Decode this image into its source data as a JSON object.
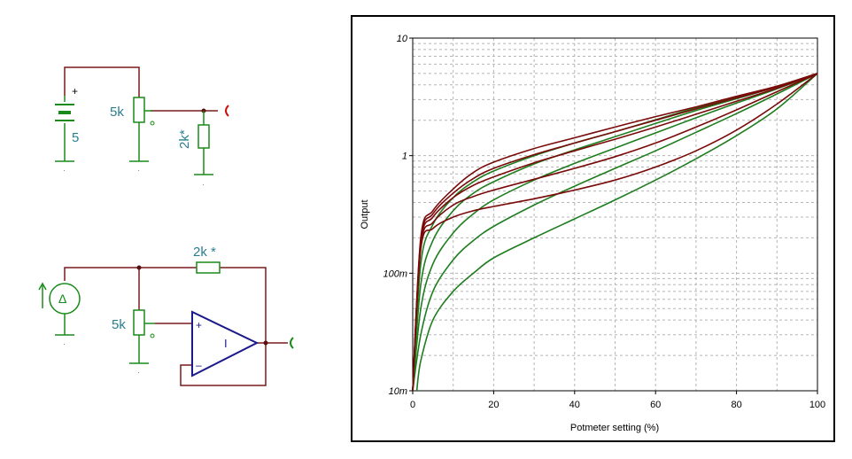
{
  "schematic": {
    "top": {
      "battery_plus": "+",
      "battery_value": "5",
      "pot_label": "5k",
      "resistor_label": "2k*"
    },
    "bottom": {
      "resistor_label": "2k *",
      "pot_label": "5k",
      "opamp_plus": "+",
      "opamp_minus": "–",
      "opamp_symbol": "I",
      "source_symbol": "Δ"
    }
  },
  "chart_data": {
    "type": "line",
    "xlabel": "Potmeter setting (%)",
    "ylabel": "Output",
    "x_ticks": [
      "0",
      "20",
      "40",
      "60",
      "80",
      "100"
    ],
    "y_ticks": [
      "10m",
      "100m",
      "1",
      "10"
    ],
    "xlim": [
      0,
      100
    ],
    "ylim": [
      0.01,
      10
    ],
    "y_scale": "log",
    "grid": true,
    "colors": {
      "red_family": "#7a0a0a",
      "green_family": "#1e7d1e",
      "circuit_green": "#1a8a1a",
      "wire": "#7a1a1a",
      "opamp": "#1a1a8a",
      "label": "#2a7f8f"
    },
    "series": [
      {
        "color": "red",
        "x": [
          0,
          2,
          5,
          10,
          15,
          20,
          30,
          40,
          50,
          60,
          70,
          80,
          90,
          100
        ],
        "y": [
          0.01,
          0.2,
          0.34,
          0.52,
          0.72,
          0.88,
          1.15,
          1.42,
          1.75,
          2.15,
          2.6,
          3.2,
          3.9,
          5.0
        ]
      },
      {
        "color": "red",
        "x": [
          0,
          2,
          5,
          10,
          15,
          20,
          30,
          40,
          50,
          60,
          70,
          80,
          90,
          100
        ],
        "y": [
          0.01,
          0.19,
          0.32,
          0.48,
          0.64,
          0.78,
          1.02,
          1.28,
          1.6,
          2.0,
          2.5,
          3.1,
          3.85,
          5.0
        ]
      },
      {
        "color": "red",
        "x": [
          0,
          2,
          5,
          10,
          15,
          20,
          30,
          40,
          50,
          60,
          70,
          80,
          90,
          100
        ],
        "y": [
          0.01,
          0.18,
          0.3,
          0.44,
          0.56,
          0.66,
          0.87,
          1.1,
          1.38,
          1.75,
          2.25,
          2.9,
          3.75,
          5.0
        ]
      },
      {
        "color": "red",
        "x": [
          0,
          2,
          5,
          10,
          15,
          20,
          30,
          40,
          50,
          60,
          70,
          80,
          90,
          100
        ],
        "y": [
          0.01,
          0.17,
          0.27,
          0.38,
          0.45,
          0.51,
          0.63,
          0.78,
          0.98,
          1.28,
          1.75,
          2.45,
          3.5,
          5.0
        ]
      },
      {
        "color": "red",
        "x": [
          0,
          2,
          5,
          10,
          15,
          20,
          30,
          40,
          50,
          60,
          70,
          80,
          90,
          100
        ],
        "y": [
          0.01,
          0.16,
          0.24,
          0.3,
          0.34,
          0.37,
          0.43,
          0.51,
          0.62,
          0.8,
          1.1,
          1.65,
          2.75,
          5.0
        ]
      },
      {
        "color": "green",
        "x": [
          0,
          2,
          5,
          10,
          15,
          20,
          30,
          40,
          50,
          60,
          70,
          80,
          90,
          100
        ],
        "y": [
          0.01,
          0.12,
          0.26,
          0.44,
          0.6,
          0.74,
          1.0,
          1.28,
          1.6,
          2.02,
          2.55,
          3.15,
          3.9,
          5.0
        ]
      },
      {
        "color": "green",
        "x": [
          0,
          2,
          5,
          10,
          15,
          20,
          30,
          40,
          50,
          60,
          70,
          80,
          90,
          100
        ],
        "y": [
          0.01,
          0.08,
          0.19,
          0.34,
          0.48,
          0.6,
          0.85,
          1.12,
          1.45,
          1.88,
          2.42,
          3.05,
          3.85,
          5.0
        ]
      },
      {
        "color": "green",
        "x": [
          0,
          2,
          5,
          10,
          15,
          20,
          30,
          40,
          50,
          60,
          70,
          80,
          90,
          100
        ],
        "y": [
          0.01,
          0.05,
          0.12,
          0.22,
          0.32,
          0.42,
          0.62,
          0.86,
          1.16,
          1.56,
          2.1,
          2.8,
          3.7,
          5.0
        ]
      },
      {
        "color": "green",
        "x": [
          0,
          2,
          5,
          10,
          15,
          20,
          30,
          40,
          50,
          60,
          70,
          80,
          90,
          100
        ],
        "y": [
          0.01,
          0.03,
          0.07,
          0.13,
          0.19,
          0.25,
          0.38,
          0.55,
          0.78,
          1.1,
          1.58,
          2.28,
          3.35,
          5.0
        ]
      },
      {
        "color": "green",
        "x": [
          1,
          2,
          5,
          10,
          15,
          20,
          30,
          40,
          50,
          60,
          70,
          80,
          90,
          100
        ],
        "y": [
          0.01,
          0.018,
          0.04,
          0.07,
          0.1,
          0.135,
          0.2,
          0.29,
          0.42,
          0.62,
          0.94,
          1.48,
          2.5,
          5.0
        ]
      }
    ]
  }
}
